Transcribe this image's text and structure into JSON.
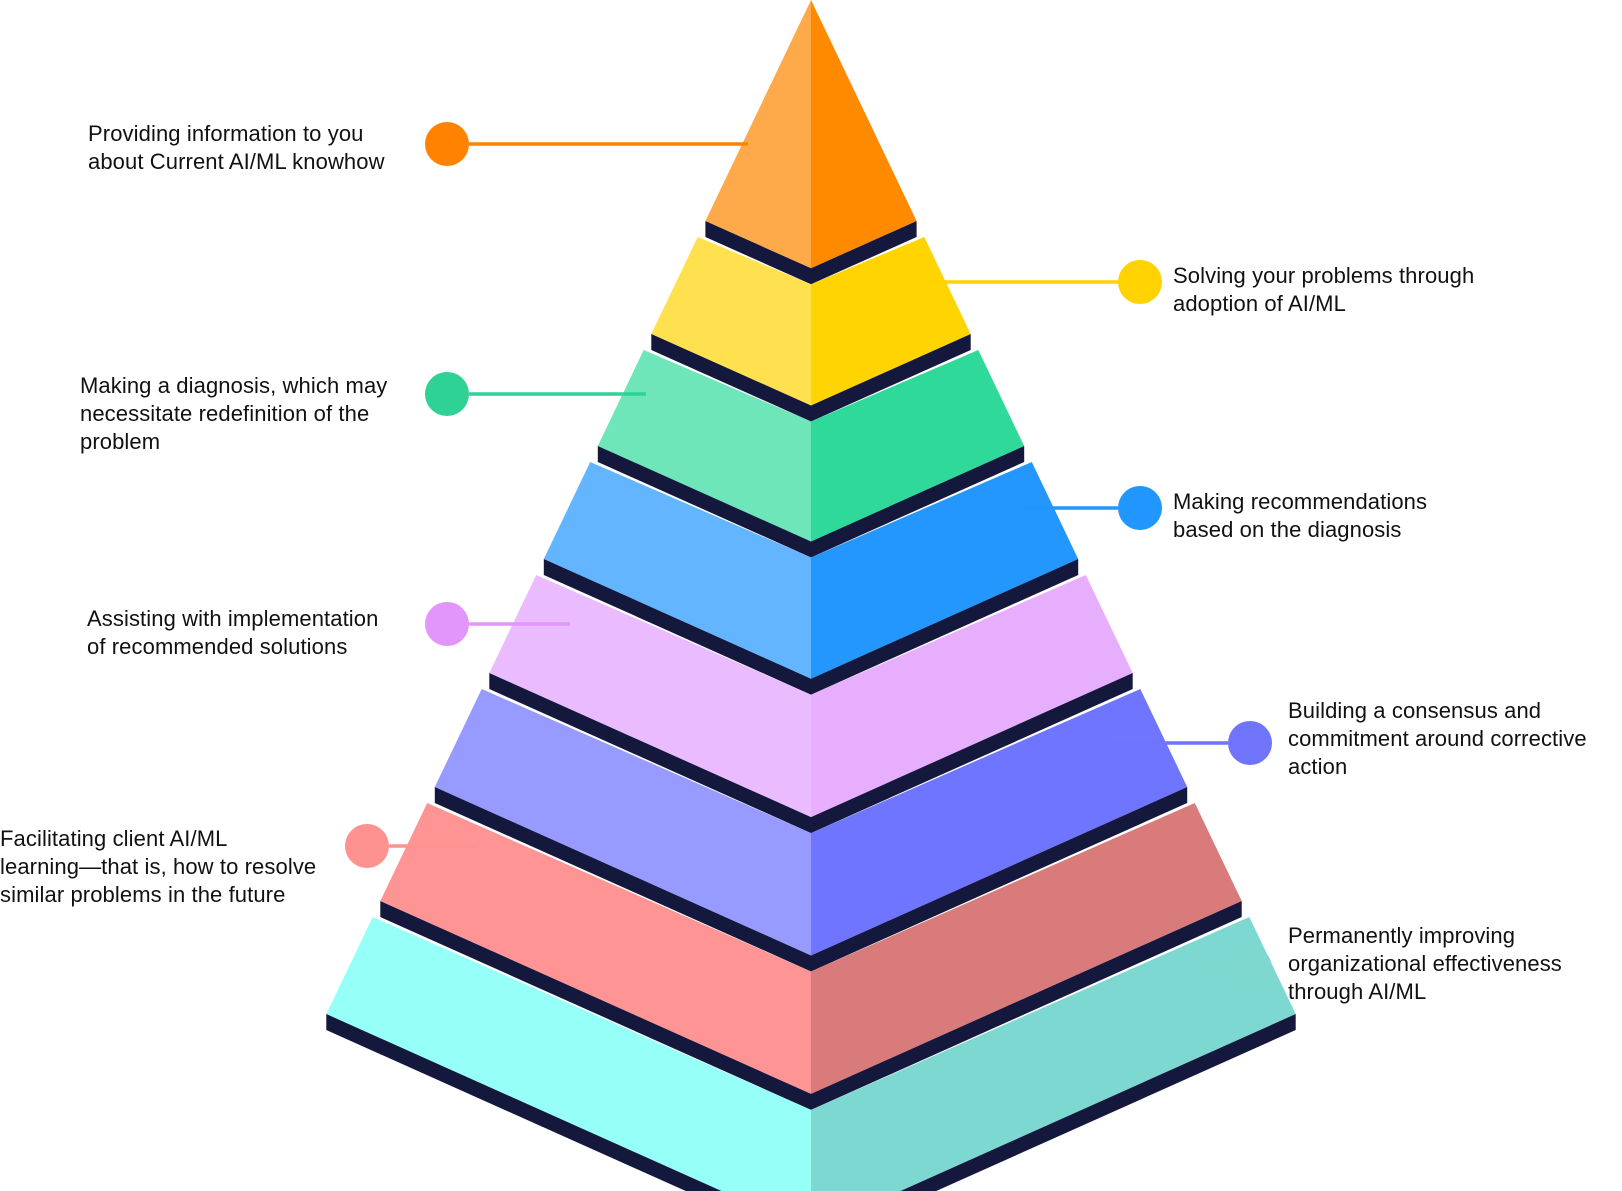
{
  "diagram": {
    "type": "layered-pyramid",
    "outline_color": "#15183d",
    "layers": [
      {
        "label_lines": [
          "Providing information to you",
          "about Current AI/ML knowhow"
        ],
        "left_color": "#ffaa4a",
        "right_color": "#ff8a00",
        "dot_color": "#ff8300"
      },
      {
        "label_lines": [
          "Solving your problems through",
          "adoption of AI/ML"
        ],
        "left_color": "#ffe04f",
        "right_color": "#ffd400",
        "dot_color": "#ffd200"
      },
      {
        "label_lines": [
          "Making a diagnosis, which may",
          "necessitate redefinition of the",
          "problem"
        ],
        "left_color": "#6ee6b9",
        "right_color": "#2fd99a",
        "dot_color": "#2ed295"
      },
      {
        "label_lines": [
          "Making recommendations",
          "based on the diagnosis"
        ],
        "left_color": "#64b5ff",
        "right_color": "#2497ff",
        "dot_color": "#2196ff"
      },
      {
        "label_lines": [
          "Assisting with implementation",
          "of recommended solutions"
        ],
        "left_color": "#ebbbff",
        "right_color": "#e7aefe",
        "dot_color": "#e295fb"
      },
      {
        "label_lines": [
          "Building a consensus and",
          "commitment around corrective",
          "action"
        ],
        "left_color": "#979aff",
        "right_color": "#7075ff",
        "dot_color": "#6f74fa"
      },
      {
        "label_lines": [
          "Facilitating client AI/ML",
          "learning—that is, how to resolve",
          "similar problems in the future"
        ],
        "left_color": "#fe9594",
        "right_color": "#d97b7b",
        "dot_color": "#fd9290"
      },
      {
        "label_lines": [
          "Permanently improving",
          "organizational effectiveness",
          "through AI/ML"
        ],
        "left_color": "#95fff8",
        "right_color": "#7ed8d2",
        "dot_color": "#7fd8d0"
      }
    ]
  }
}
